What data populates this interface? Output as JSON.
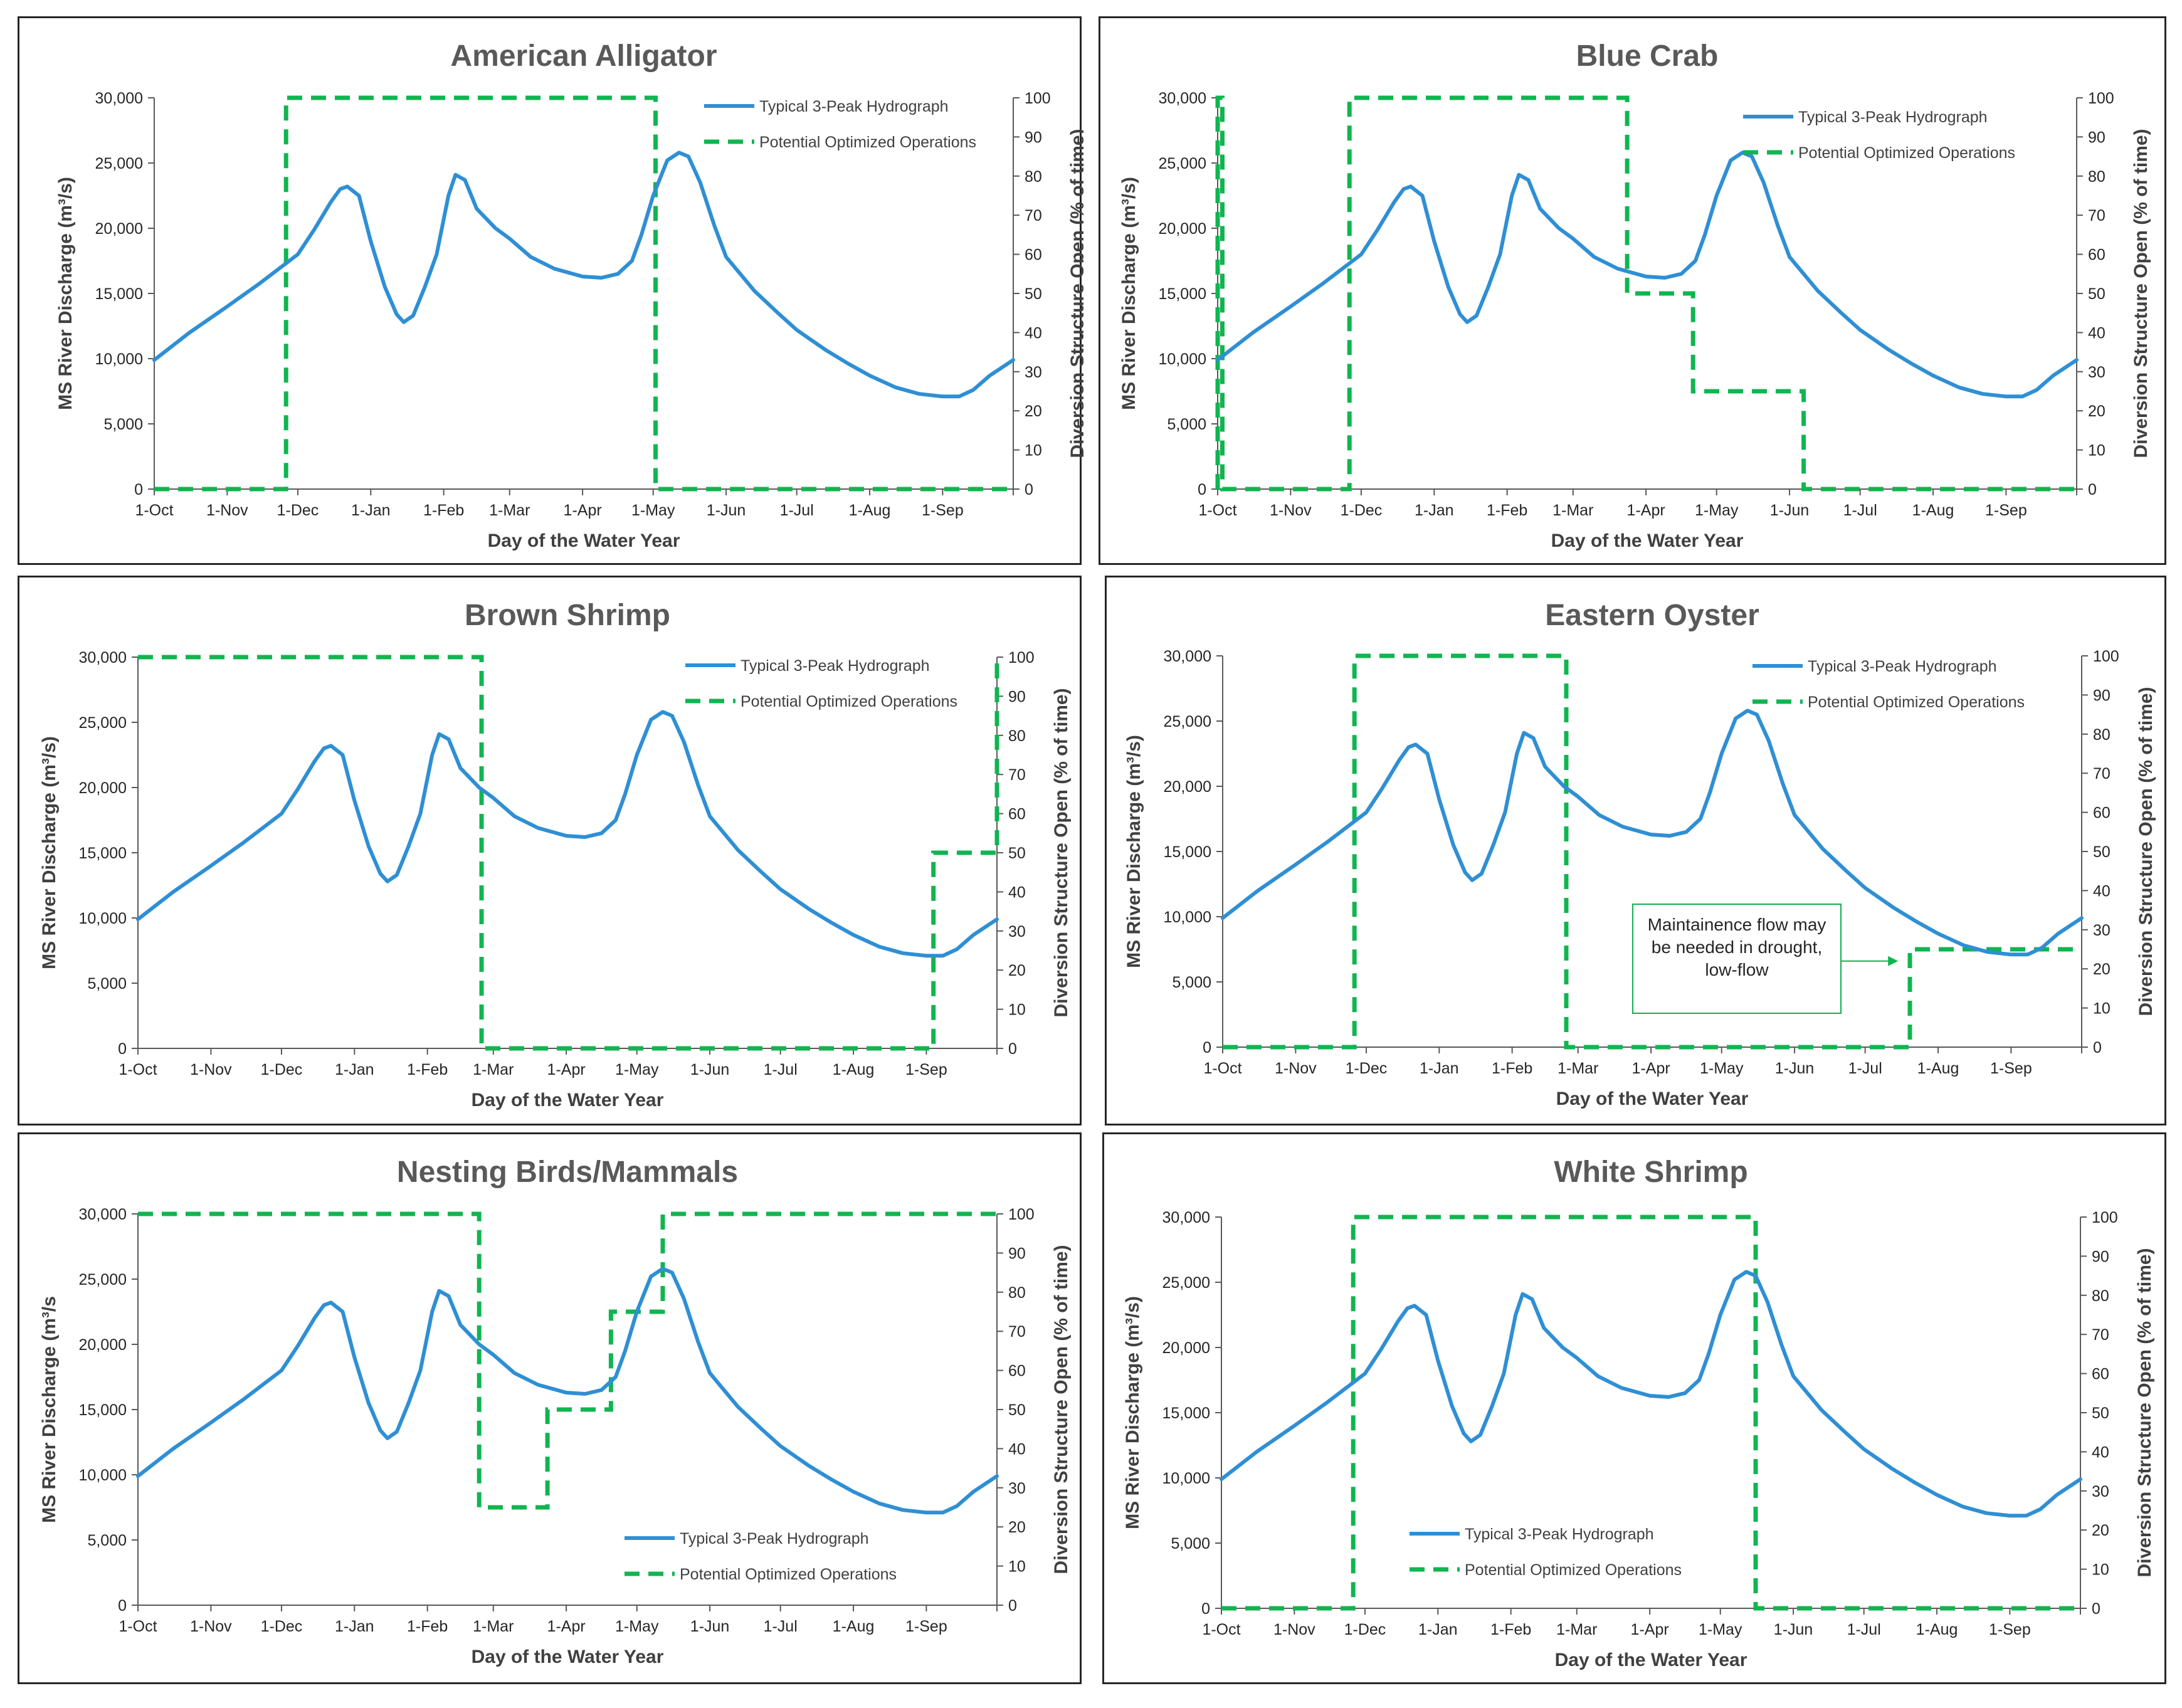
{
  "colors": {
    "hydrograph": "#2f8fd4",
    "operations": "#10b550",
    "axis": "#595959",
    "frame": "#262626"
  },
  "shared": {
    "hydrograph_legend": "Typical 3-Peak Hydrograph",
    "operations_legend": "Potential Optimized Operations",
    "xlabel": "Day of the Water Year",
    "ylabel_left": "MS River Discharge (m³/s)",
    "ylabel_left_alt": "MS River Discharge (m³/s",
    "ylabel_right": "Diversion Structure Open (% of time)",
    "x_ticks": [
      {
        "day": 0,
        "label": "1-Oct"
      },
      {
        "day": 31,
        "label": "1-Nov"
      },
      {
        "day": 61,
        "label": "1-Dec"
      },
      {
        "day": 92,
        "label": "1-Jan"
      },
      {
        "day": 123,
        "label": "1-Feb"
      },
      {
        "day": 151,
        "label": "1-Mar"
      },
      {
        "day": 182,
        "label": "1-Apr"
      },
      {
        "day": 212,
        "label": "1-May"
      },
      {
        "day": 243,
        "label": "1-Jun"
      },
      {
        "day": 273,
        "label": "1-Jul"
      },
      {
        "day": 304,
        "label": "1-Aug"
      },
      {
        "day": 335,
        "label": "1-Sep"
      }
    ],
    "xlim": [
      0,
      365
    ],
    "y_left_ticks": [
      {
        "v": 0,
        "label": "0"
      },
      {
        "v": 5000,
        "label": "5,000"
      },
      {
        "v": 10000,
        "label": "10,000"
      },
      {
        "v": 15000,
        "label": "15,000"
      },
      {
        "v": 20000,
        "label": "20,000"
      },
      {
        "v": 25000,
        "label": "25,000"
      },
      {
        "v": 30000,
        "label": "30,000"
      }
    ],
    "ylim_left": [
      0,
      30000
    ],
    "y_right_ticks": [
      0,
      10,
      20,
      30,
      40,
      50,
      60,
      70,
      80,
      90,
      100
    ],
    "ylim_right": [
      0,
      100
    ],
    "hydrograph": {
      "x": [
        0,
        15,
        31,
        45,
        61,
        68,
        75,
        79,
        82,
        87,
        92,
        98,
        103,
        106,
        110,
        115,
        120,
        125,
        128,
        132,
        137,
        145,
        151,
        160,
        170,
        182,
        190,
        197,
        203,
        207,
        212,
        218,
        223,
        227,
        232,
        238,
        243,
        255,
        265,
        273,
        285,
        295,
        304,
        315,
        325,
        335,
        342,
        348,
        355,
        365
      ],
      "y": [
        9900,
        12000,
        14000,
        15800,
        18000,
        19900,
        22000,
        23000,
        23200,
        22500,
        19000,
        15500,
        13400,
        12800,
        13300,
        15500,
        18000,
        22500,
        24100,
        23700,
        21500,
        20000,
        19200,
        17800,
        16900,
        16300,
        16200,
        16500,
        17500,
        19500,
        22500,
        25200,
        25800,
        25500,
        23500,
        20200,
        17800,
        15200,
        13500,
        12200,
        10700,
        9600,
        8700,
        7800,
        7300,
        7100,
        7100,
        7600,
        8700,
        9900
      ]
    }
  },
  "chart_data": [
    {
      "type": "line",
      "title": "American Alligator",
      "ylabel_alt": false,
      "series": [
        {
          "name": "Typical 3-Peak Hydrograph",
          "axis": "left",
          "style": "solid",
          "ref": "shared.hydrograph"
        },
        {
          "name": "Potential Optimized Operations",
          "axis": "right",
          "style": "dashed",
          "x": [
            0,
            56,
            56,
            213,
            213,
            365
          ],
          "y": [
            0,
            0,
            100,
            100,
            0,
            0
          ]
        }
      ],
      "legend": "top-right"
    },
    {
      "type": "line",
      "title": "Blue Crab",
      "ylabel_alt": false,
      "series": [
        {
          "name": "Typical 3-Peak Hydrograph",
          "axis": "left",
          "style": "solid",
          "ref": "shared.hydrograph"
        },
        {
          "name": "Potential Optimized Operations",
          "axis": "right",
          "style": "dashed",
          "x": [
            0,
            0,
            2,
            2,
            56,
            56,
            174,
            174,
            202,
            202,
            249,
            249,
            365
          ],
          "y": [
            0,
            100,
            100,
            0,
            0,
            100,
            100,
            50,
            50,
            25,
            25,
            0,
            0
          ]
        }
      ],
      "legend": "top-right"
    },
    {
      "type": "line",
      "title": "Brown Shrimp",
      "ylabel_alt": false,
      "series": [
        {
          "name": "Typical 3-Peak Hydrograph",
          "axis": "left",
          "style": "solid",
          "ref": "shared.hydrograph"
        },
        {
          "name": "Potential Optimized Operations",
          "axis": "right",
          "style": "dashed",
          "x": [
            0,
            146,
            146,
            338,
            338,
            365,
            365
          ],
          "y": [
            100,
            100,
            0,
            0,
            50,
            50,
            100
          ]
        }
      ],
      "legend": "top-right"
    },
    {
      "type": "line",
      "title": "Eastern Oyster",
      "ylabel_alt": false,
      "series": [
        {
          "name": "Typical 3-Peak Hydrograph",
          "axis": "left",
          "style": "solid",
          "ref": "shared.hydrograph"
        },
        {
          "name": "Potential Optimized Operations",
          "axis": "right",
          "style": "dashed",
          "x": [
            0,
            56,
            56,
            146,
            146,
            292,
            292,
            365
          ],
          "y": [
            0,
            0,
            100,
            100,
            0,
            0,
            25,
            25
          ]
        }
      ],
      "legend": "top-right",
      "annotation": {
        "text": "Maintainence flow may be needed in drought, low-flow",
        "arrow_to_day": 287,
        "arrow_to_pct": 22
      }
    },
    {
      "type": "line",
      "title": "Nesting Birds/Mammals",
      "ylabel_alt": true,
      "series": [
        {
          "name": "Typical 3-Peak Hydrograph",
          "axis": "left",
          "style": "solid",
          "ref": "shared.hydrograph"
        },
        {
          "name": "Potential Optimized Operations",
          "axis": "right",
          "style": "dashed",
          "x": [
            0,
            145,
            145,
            174,
            174,
            201,
            201,
            223,
            223,
            365
          ],
          "y": [
            100,
            100,
            25,
            25,
            50,
            50,
            75,
            75,
            100,
            100
          ]
        }
      ],
      "legend": "bottom-center"
    },
    {
      "type": "line",
      "title": "White Shrimp",
      "ylabel_alt": false,
      "series": [
        {
          "name": "Typical 3-Peak Hydrograph",
          "axis": "left",
          "style": "solid",
          "ref": "shared.hydrograph"
        },
        {
          "name": "Potential Optimized Operations",
          "axis": "right",
          "style": "dashed",
          "x": [
            0,
            56,
            56,
            227,
            227,
            365
          ],
          "y": [
            0,
            0,
            100,
            100,
            0,
            0
          ]
        }
      ],
      "legend": "bottom-left"
    }
  ]
}
